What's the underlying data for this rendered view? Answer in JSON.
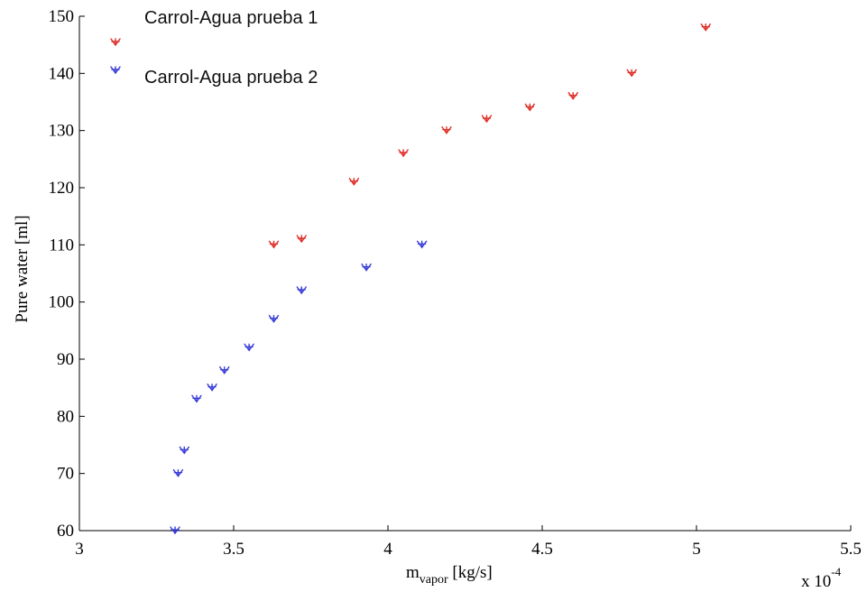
{
  "chart_data": {
    "type": "scatter",
    "xlabel": {
      "main": "m",
      "sub": "vapor",
      "unit": " [kg/s]"
    },
    "ylabel": "Pure water [ml]",
    "x_multiplier": {
      "base": "x 10",
      "exponent": "-4"
    },
    "xlim": [
      3,
      5.5
    ],
    "ylim": [
      60,
      150
    ],
    "xticks": [
      3,
      3.5,
      4,
      4.5,
      5,
      5.5
    ],
    "xtick_labels": [
      "3",
      "3.5",
      "4",
      "4.5",
      "5",
      "5.5"
    ],
    "yticks": [
      60,
      70,
      80,
      90,
      100,
      110,
      120,
      130,
      140,
      150
    ],
    "ytick_labels": [
      "60",
      "70",
      "80",
      "90",
      "100",
      "110",
      "120",
      "130",
      "140",
      "150"
    ],
    "legend_position": "top-left",
    "series": [
      {
        "name": "Carrol-Agua prueba 1",
        "color": "#e0302a",
        "marker": "tri",
        "x": [
          3.63,
          3.72,
          3.89,
          4.05,
          4.19,
          4.32,
          4.46,
          4.6,
          4.79,
          5.03
        ],
        "y": [
          110,
          111,
          121,
          126,
          130,
          132,
          134,
          136,
          140,
          148
        ]
      },
      {
        "name": "Carrol-Agua prueba 2",
        "color": "#3a3fd8",
        "marker": "tri",
        "x": [
          3.31,
          3.32,
          3.34,
          3.38,
          3.43,
          3.47,
          3.55,
          3.63,
          3.72,
          3.93,
          4.11
        ],
        "y": [
          60,
          70,
          74,
          83,
          85,
          88,
          92,
          97,
          102,
          106,
          110
        ]
      }
    ]
  }
}
